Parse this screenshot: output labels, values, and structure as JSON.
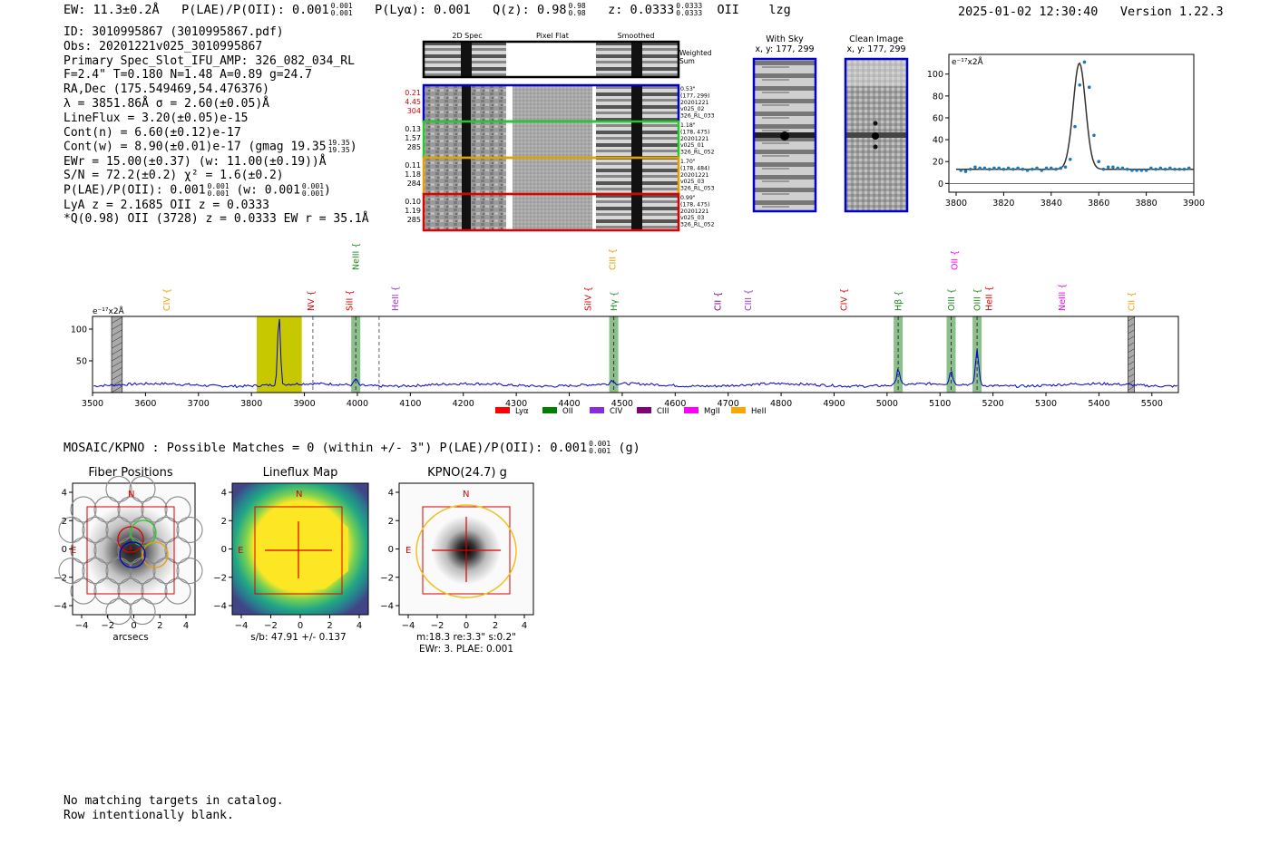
{
  "header": {
    "ew": "EW: 11.3±0.2Å",
    "plae_label": "P(LAE)/P(OII): 0.001",
    "plae_hi": "0.001",
    "plae_lo": "0.001",
    "plya": "P(Lyα): 0.001",
    "qz_label": "Q(z): 0.98",
    "qz_hi": "0.98",
    "qz_lo": "0.98",
    "z_label": "z: 0.0333",
    "z_hi": "0.0333",
    "z_lo": "0.0333",
    "line": "OII",
    "flags": "lzg",
    "timestamp": "2025-01-02 12:30:40",
    "version": "Version 1.22.3"
  },
  "info": {
    "id": "ID: 3010995867 (3010995867.pdf)",
    "obs": "Obs: 20201221v025_3010995867",
    "primary": "Primary Spec_Slot_IFU_AMP: 326_082_034_RL",
    "fwhm": "F=2.4\"  T=0.180  N=1.48  A=0.89  g=24.7",
    "radec": "RA,Dec (175.549469,54.476376)",
    "lambda": "λ = 3851.86Å  σ = 2.60(±0.05)Å",
    "lineflux": "LineFlux = 3.20(±0.05)e-15",
    "contn": "Cont(n) = 6.60(±0.12)e-17",
    "contw_a": "Cont(w) = 8.90(±0.01)e-17 (gmag 19.35",
    "contw_hi": "19.35",
    "contw_lo": "19.35",
    "contw_b": ")",
    "ewr": "EWr = 15.00(±0.37) (w: 11.00(±0.19))Å",
    "sn": "S/N = 72.2(±0.2)  χ² = 1.6(±0.2)",
    "plae_a": "P(LAE)/P(OII): 0.001",
    "plae_hi": "0.001",
    "plae_lo": "0.001",
    "plae_b": "(w: 0.001",
    "plae_w_hi": "0.001",
    "plae_w_lo": "0.001",
    "plae_c": ")",
    "lya": "LyA z = 2.1685  OII z = 0.0333",
    "q": "*Q(0.98) OII (3728) z = 0.0333  EW r = 35.1Å"
  },
  "cutouts": {
    "col_2d": "2D Spec",
    "col_flat": "Pixel Flat",
    "col_smooth": "Smoothed",
    "weighted_1": "Weighted",
    "weighted_2": "Sum",
    "rows": [
      {
        "color": "#0000cc",
        "n1": "0.21",
        "n2": "4.45",
        "n3": "304",
        "numcolor": "#dd0000",
        "r1": "0.53\"",
        "r2": "(177, 299)",
        "r3": "20201221",
        "r4": "v025_02",
        "r5": "326_RL_033"
      },
      {
        "color": "#22cc22",
        "n1": "0.13",
        "n2": "1.57",
        "n3": "285",
        "numcolor": "#000000",
        "r1": "1.18\"",
        "r2": "(178, 475)",
        "r3": "20201221",
        "r4": "v025_01",
        "r5": "326_RL_052"
      },
      {
        "color": "#e69f00",
        "n1": "0.11",
        "n2": "1.18",
        "n3": "284",
        "numcolor": "#000000",
        "r1": "1.70\"",
        "r2": "(178, 484)",
        "r3": "20201221",
        "r4": "v025_03",
        "r5": "326_RL_053"
      },
      {
        "color": "#dd0000",
        "n1": "0.10",
        "n2": "1.19",
        "n3": "285",
        "numcolor": "#000000",
        "r1": "0.99\"",
        "r2": "(178, 475)",
        "r3": "20201221",
        "r4": "v025_03",
        "r5": "326_RL_052"
      }
    ],
    "with_sky_1": "With Sky",
    "with_sky_2": "x, y: 177, 299",
    "clean_1": "Clean Image",
    "clean_2": "x, y: 177, 299"
  },
  "colors": {
    "spectrum": "#0000cc",
    "fit": "#333333",
    "points": "#1f77b4",
    "lya": "#ff0000",
    "oii": "#008000",
    "civ": "#8a2be2",
    "ciii": "#800080",
    "mgii": "#ff00ff",
    "heii": "#ffa500",
    "highlight": "#c8c800",
    "line_band": "#2e8b2e"
  },
  "chart_data": [
    {
      "type": "scatter",
      "name": "zoom-fit",
      "unit_label": "e⁻¹⁷x2Å",
      "xlim": [
        3800,
        3900
      ],
      "ylim": [
        -8,
        118
      ],
      "xticks": [
        3800,
        3820,
        3840,
        3860,
        3880,
        3900
      ],
      "yticks": [
        0,
        20,
        40,
        60,
        80,
        100
      ],
      "points_x": [
        3802,
        3804,
        3806,
        3808,
        3810,
        3812,
        3814,
        3816,
        3818,
        3820,
        3822,
        3824,
        3826,
        3828,
        3830,
        3832,
        3834,
        3836,
        3838,
        3840,
        3842,
        3844,
        3846,
        3848,
        3850,
        3852,
        3854,
        3856,
        3858,
        3860,
        3862,
        3864,
        3866,
        3868,
        3870,
        3872,
        3874,
        3876,
        3878,
        3880,
        3882,
        3884,
        3886,
        3888,
        3890,
        3892,
        3894,
        3896,
        3898
      ],
      "points_y": [
        12,
        11,
        13,
        15,
        14,
        14,
        13,
        14,
        14,
        13,
        14,
        13,
        14,
        13,
        12,
        13,
        14,
        12,
        14,
        14,
        13,
        14,
        15,
        22,
        52,
        90,
        111,
        88,
        44,
        20,
        13,
        15,
        15,
        14,
        14,
        13,
        12,
        12,
        12,
        12,
        14,
        13,
        14,
        13,
        14,
        13,
        13,
        13,
        14
      ],
      "fit_center": 3851.86,
      "fit_sigma": 2.6,
      "fit_amp": 97,
      "fit_cont": 13
    },
    {
      "type": "line",
      "name": "full-spectrum",
      "unit_label": "e⁻¹⁷x2Å",
      "xlim": [
        3500,
        5550
      ],
      "ylim": [
        0,
        120
      ],
      "xticks": [
        3500,
        3600,
        3700,
        3800,
        3900,
        4000,
        4100,
        4200,
        4300,
        4400,
        4500,
        4600,
        4700,
        4800,
        4900,
        5000,
        5100,
        5200,
        5300,
        5400,
        5500
      ],
      "yticks": [
        50,
        100
      ],
      "peaks": [
        [
          3852,
          110,
          2.6
        ],
        [
          3997,
          10,
          3
        ],
        [
          4481,
          6,
          3
        ],
        [
          5021,
          26,
          3
        ],
        [
          5121,
          21,
          3
        ],
        [
          5170,
          56,
          3
        ]
      ],
      "continuum": 12,
      "highlight_range": [
        3810,
        3895
      ],
      "masked": [
        [
          3536,
          3556
        ],
        [
          5455,
          5467
        ]
      ],
      "dashed": [
        3916,
        4041
      ],
      "lines": [
        {
          "label": "CIV",
          "x": 3640,
          "color": "#e69f00",
          "row": 1
        },
        {
          "label": "NV",
          "x": 3912,
          "color": "#dd0000",
          "row": 1
        },
        {
          "label": "SiII",
          "x": 3985,
          "color": "#dd0000",
          "row": 1
        },
        {
          "label": "NeIII",
          "x": 3997,
          "color": "#228b22",
          "row": 0,
          "band": true
        },
        {
          "label": "HeII",
          "x": 4071,
          "color": "#9932cc",
          "row": 1
        },
        {
          "label": "SiIV",
          "x": 4435,
          "color": "#dd0000",
          "row": 1
        },
        {
          "label": "CIII",
          "x": 4481,
          "color": "#e69f00",
          "row": 0
        },
        {
          "label": "Hγ",
          "x": 4484,
          "color": "#228b22",
          "row": 1,
          "band": true
        },
        {
          "label": "CII",
          "x": 4680,
          "color": "#800080",
          "row": 1
        },
        {
          "label": "CIII",
          "x": 4737,
          "color": "#9932cc",
          "row": 1
        },
        {
          "label": "CIV",
          "x": 4918,
          "color": "#dd0000",
          "row": 1
        },
        {
          "label": "Hβ",
          "x": 5021,
          "color": "#228b22",
          "row": 1,
          "band": true
        },
        {
          "label": "OIII",
          "x": 5121,
          "color": "#228b22",
          "row": 1,
          "band": true
        },
        {
          "label": "OII",
          "x": 5127,
          "color": "#ff00ff",
          "row": 0
        },
        {
          "label": "OIII",
          "x": 5170,
          "color": "#228b22",
          "row": 1,
          "band": true
        },
        {
          "label": "HeII",
          "x": 5192,
          "color": "#dd0000",
          "row": 1
        },
        {
          "label": "NeIII",
          "x": 5330,
          "color": "#ff00ff",
          "row": 1
        },
        {
          "label": "CII",
          "x": 5461,
          "color": "#e69f00",
          "row": 1
        }
      ],
      "legend": [
        {
          "label": "Lyα",
          "color": "#ff0000"
        },
        {
          "label": "OII",
          "color": "#008000"
        },
        {
          "label": "CIV",
          "color": "#8a2be2"
        },
        {
          "label": "CIII",
          "color": "#800080"
        },
        {
          "label": "MgII",
          "color": "#ff00ff"
        },
        {
          "label": "HeII",
          "color": "#ffa500"
        }
      ]
    }
  ],
  "matches": {
    "text_a": "MOSAIC/KPNO : Possible Matches = 0 (within +/- 3\")  P(LAE)/P(OII): 0.001",
    "hi": "0.001",
    "lo": "0.001",
    "text_b": "(g)"
  },
  "panels": {
    "fiber_title": "Fiber Positions",
    "fiber_xlabel": "arcsecs",
    "flux_title": "Lineflux Map",
    "flux_xlabel": "s/b: 47.91 +/- 0.137",
    "kpno_title": "KPNO(24.7) g",
    "kpno_xlabel_1": "m:18.3  re:3.3\"  s:0.2\"",
    "kpno_xlabel_2": "EWr: 3. PLAE: 0.001",
    "north": "N",
    "east": "E",
    "ticks": [
      "−4",
      "−2",
      "0",
      "2",
      "4"
    ]
  },
  "footer": {
    "line1": "No matching targets in catalog.",
    "line2": "Row intentionally blank."
  }
}
